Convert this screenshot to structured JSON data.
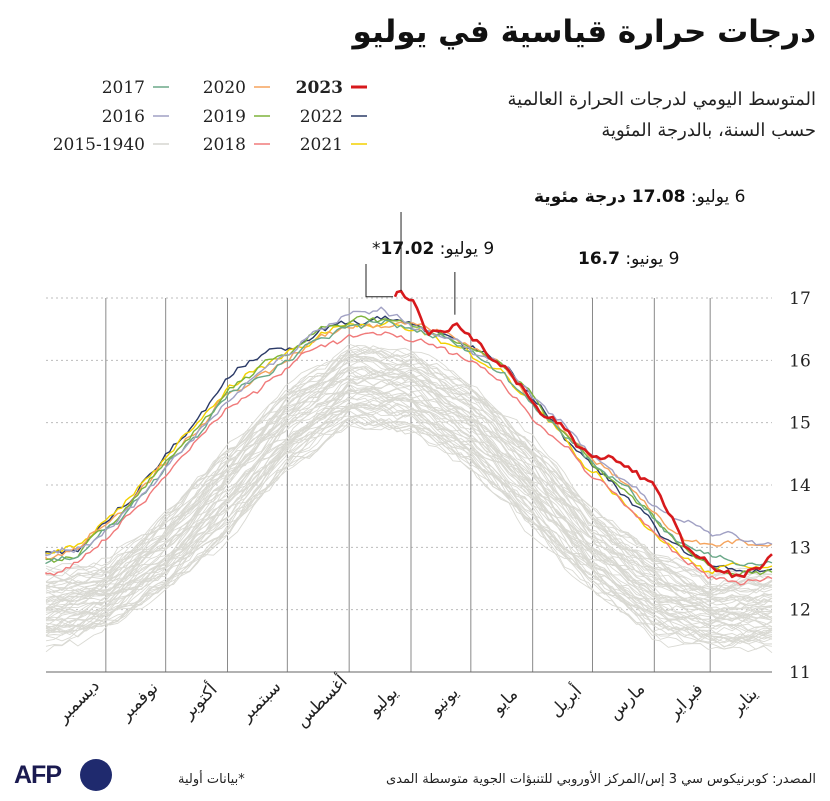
{
  "title": "درجات حرارة قياسية في يوليو",
  "subtitle": "المتوسط اليومي لدرجات الحرارة العالمية حسب السنة، بالدرجة المئوية",
  "legend": [
    {
      "label": "2023",
      "color": "#d7191c",
      "bold": true
    },
    {
      "label": "2022",
      "color": "#2b3a67"
    },
    {
      "label": "2021",
      "color": "#f2d100"
    },
    {
      "label": "2020",
      "color": "#f5a35c"
    },
    {
      "label": "2019",
      "color": "#7db33b"
    },
    {
      "label": "2018",
      "color": "#f07a7a"
    },
    {
      "label": "2017",
      "color": "#6aa888"
    },
    {
      "label": "2016",
      "color": "#a1a1c4"
    },
    {
      "label": "2015-1940",
      "color": "#d6d6d0"
    }
  ],
  "annotations": {
    "record": {
      "prefix": "6 يوليو: ",
      "value": "17.08 درجة مئوية"
    },
    "prelim": {
      "prefix": "9 يوليو: ",
      "value": "17.02",
      "star": "*"
    },
    "june": {
      "prefix": "9 يونيو: ",
      "value": "16.7"
    }
  },
  "footer": {
    "source": "المصدر: كوبرنيكوس سي 3 إس/المركز الأوروبي للتنبؤات الجوية متوسطة المدى",
    "note": "*بيانات أولية",
    "logo": "AFP"
  },
  "chart_data": {
    "type": "line",
    "direction": "rtl",
    "title": "درجات حرارة قياسية في يوليو",
    "ylim": [
      11,
      17
    ],
    "yticks": [
      11,
      12,
      13,
      14,
      15,
      16,
      17
    ],
    "months": [
      "يناير",
      "فبراير",
      "مارس",
      "أبريل",
      "مايو",
      "يونيو",
      "يوليو",
      "أغسطس",
      "سبتمبر",
      "أكتوبر",
      "نوفمبر",
      "ديسمبر"
    ],
    "grid": true,
    "legend_position": "top-left",
    "series": [
      {
        "name": "2023",
        "color": "#d7191c",
        "x": [
          1,
          15,
          32,
          46,
          60,
          74,
          91,
          105,
          121,
          135,
          152,
          160,
          166,
          173,
          180,
          187,
          190
        ],
        "values": [
          12.95,
          12.5,
          12.7,
          13.15,
          14.0,
          14.3,
          14.5,
          14.85,
          15.3,
          15.85,
          16.35,
          16.7,
          16.45,
          16.45,
          16.85,
          17.08,
          17.02
        ]
      },
      {
        "name": "2022",
        "color": "#2b3a67",
        "x": [
          1,
          15,
          32,
          46,
          60,
          74,
          91,
          105,
          121,
          135,
          152,
          166,
          182,
          196,
          213,
          227,
          244,
          258,
          274,
          288,
          305,
          319,
          335,
          350,
          365
        ],
        "values": [
          12.7,
          12.6,
          12.7,
          12.95,
          13.35,
          13.8,
          14.3,
          14.8,
          15.4,
          15.9,
          16.2,
          16.4,
          16.55,
          16.65,
          16.65,
          16.5,
          16.2,
          16.1,
          15.7,
          15.1,
          14.5,
          13.9,
          13.45,
          12.95,
          12.9
        ]
      },
      {
        "name": "2021",
        "color": "#f2d100",
        "x": [
          1,
          15,
          32,
          46,
          60,
          74,
          91,
          105,
          121,
          135,
          152,
          166,
          182,
          196,
          213,
          227,
          244,
          258,
          274,
          288,
          305,
          319,
          335,
          350,
          365
        ],
        "values": [
          12.75,
          12.7,
          12.6,
          12.85,
          13.2,
          13.7,
          14.2,
          14.7,
          15.3,
          15.8,
          16.15,
          16.35,
          16.5,
          16.6,
          16.55,
          16.4,
          16.1,
          15.85,
          15.55,
          15.0,
          14.45,
          13.9,
          13.4,
          13.0,
          12.9
        ]
      },
      {
        "name": "2020",
        "color": "#f5a35c",
        "x": [
          1,
          15,
          32,
          46,
          60,
          74,
          91,
          105,
          121,
          135,
          152,
          166,
          182,
          196,
          213,
          227,
          244,
          258,
          274,
          288,
          305,
          319,
          335,
          350,
          365
        ],
        "values": [
          13.1,
          13.1,
          13.05,
          13.2,
          13.55,
          14.0,
          14.4,
          14.85,
          15.35,
          15.85,
          16.2,
          16.4,
          16.55,
          16.6,
          16.55,
          16.4,
          16.0,
          15.75,
          15.45,
          14.9,
          14.4,
          13.85,
          13.3,
          12.95,
          12.85
        ]
      },
      {
        "name": "2019",
        "color": "#7db33b",
        "x": [
          1,
          15,
          32,
          46,
          60,
          74,
          91,
          105,
          121,
          135,
          152,
          166,
          182,
          196,
          213,
          227,
          244,
          258,
          274,
          288,
          305,
          319,
          335,
          350,
          365
        ],
        "values": [
          12.65,
          12.55,
          12.75,
          13.0,
          13.45,
          13.95,
          14.35,
          14.85,
          15.4,
          15.9,
          16.2,
          16.4,
          16.55,
          16.7,
          16.65,
          16.5,
          16.1,
          15.9,
          15.5,
          14.95,
          14.35,
          13.85,
          13.35,
          12.85,
          12.8
        ]
      },
      {
        "name": "2018",
        "color": "#f07a7a",
        "x": [
          1,
          15,
          32,
          46,
          60,
          74,
          91,
          105,
          121,
          135,
          152,
          166,
          182,
          196,
          213,
          227,
          244,
          258,
          274,
          288,
          305,
          319,
          335,
          350,
          365
        ],
        "values": [
          12.55,
          12.45,
          12.5,
          12.8,
          13.2,
          13.65,
          14.15,
          14.6,
          15.1,
          15.6,
          15.95,
          16.2,
          16.35,
          16.45,
          16.4,
          16.25,
          15.85,
          15.55,
          15.25,
          14.7,
          14.15,
          13.6,
          13.15,
          12.7,
          12.6
        ]
      },
      {
        "name": "2017",
        "color": "#6aa888",
        "x": [
          1,
          15,
          32,
          46,
          60,
          74,
          91,
          105,
          121,
          135,
          152,
          166,
          182,
          196,
          213,
          227,
          244,
          258,
          274,
          288,
          305,
          319,
          335,
          350,
          365
        ],
        "values": [
          12.8,
          12.75,
          12.85,
          13.1,
          13.45,
          13.95,
          14.35,
          14.8,
          15.3,
          15.8,
          16.15,
          16.35,
          16.5,
          16.6,
          16.55,
          16.35,
          16.0,
          15.7,
          15.4,
          14.85,
          14.3,
          13.75,
          13.25,
          12.85,
          12.75
        ]
      },
      {
        "name": "2016",
        "color": "#a1a1c4",
        "x": [
          1,
          15,
          32,
          46,
          60,
          74,
          91,
          105,
          121,
          135,
          152,
          166,
          182,
          196,
          213,
          227,
          244,
          258,
          274,
          288,
          305,
          319,
          335,
          350,
          365
        ],
        "values": [
          13.1,
          13.15,
          13.25,
          13.4,
          13.7,
          14.1,
          14.5,
          14.95,
          15.4,
          15.9,
          16.2,
          16.4,
          16.55,
          16.8,
          16.75,
          16.5,
          16.05,
          15.8,
          15.35,
          14.85,
          14.25,
          13.75,
          13.25,
          12.95,
          12.9
        ]
      }
    ],
    "baseline_range_1940_2015": {
      "name": "2015-1940",
      "x": [
        1,
        32,
        60,
        91,
        121,
        152,
        182,
        213,
        244,
        274,
        305,
        335,
        365
      ],
      "low": [
        11.4,
        11.4,
        11.6,
        12.3,
        13.3,
        14.3,
        14.9,
        15.0,
        14.3,
        13.2,
        12.3,
        11.7,
        11.4
      ],
      "high": [
        12.6,
        12.5,
        12.9,
        13.6,
        14.7,
        15.6,
        16.1,
        16.2,
        15.5,
        14.6,
        13.5,
        12.7,
        12.6
      ]
    }
  }
}
